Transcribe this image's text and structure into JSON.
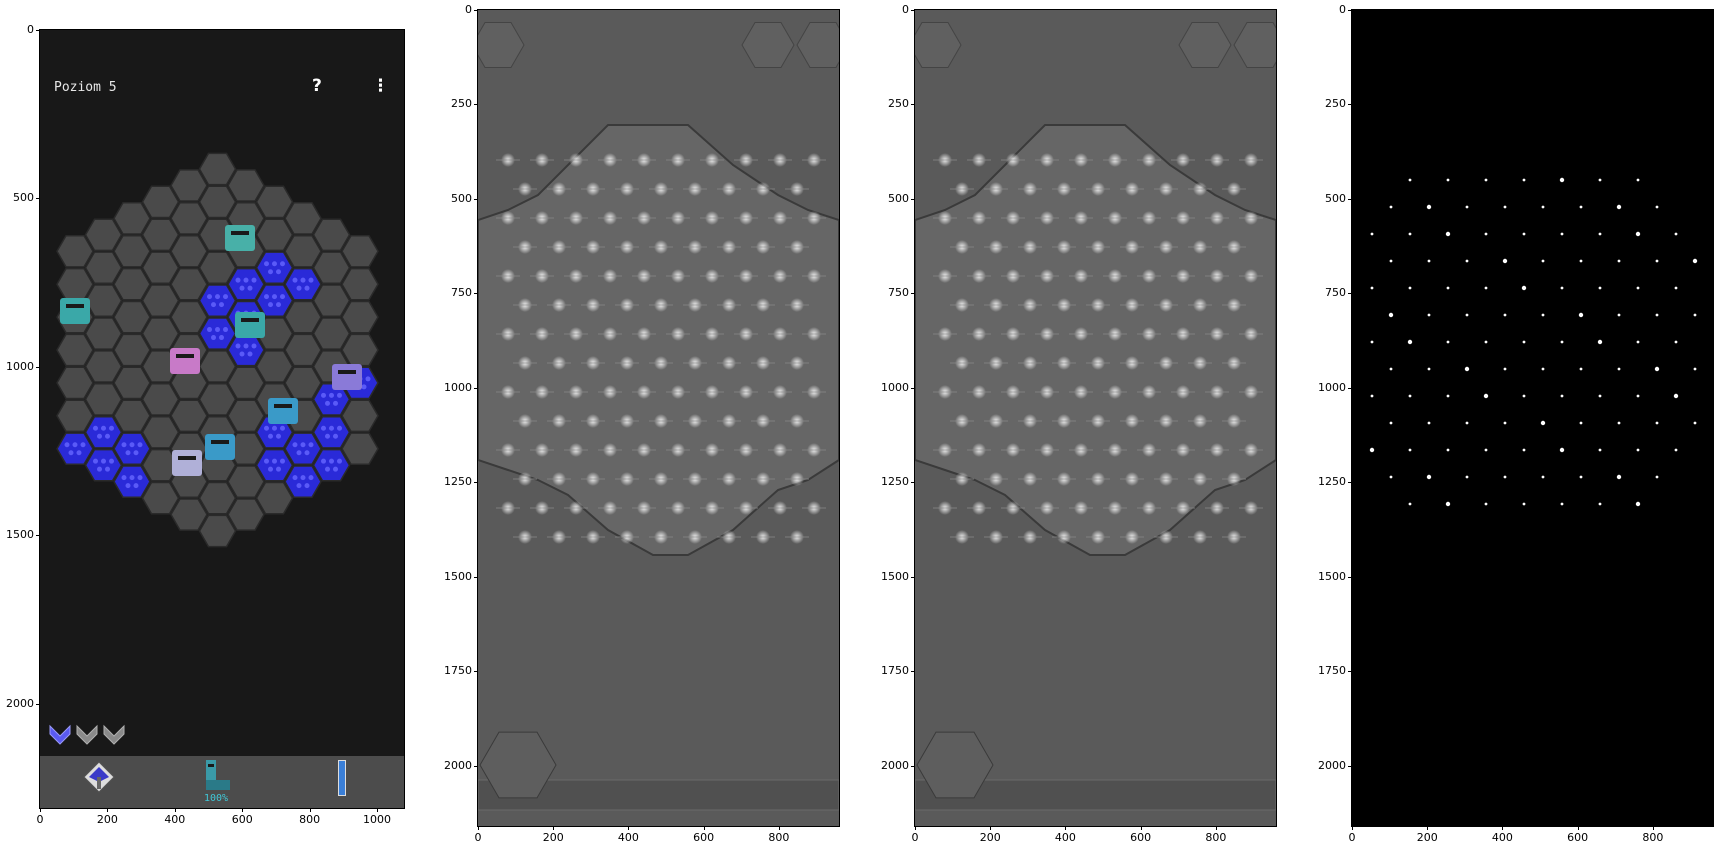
{
  "panels": [
    {
      "id": "game-screenshot",
      "x_ticks": [
        "0",
        "200",
        "400",
        "600",
        "800",
        "1000"
      ],
      "y_ticks": [
        "0",
        "500",
        "1000",
        "1500",
        "2000"
      ],
      "hud": {
        "title": "Poziom 5",
        "help_icon": "?",
        "menu_icon": "⋮",
        "boot_count": "100%"
      }
    },
    {
      "id": "filtered-map-1",
      "x_ticks": [
        "0",
        "200",
        "400",
        "600",
        "800"
      ],
      "y_ticks": [
        "0",
        "250",
        "500",
        "750",
        "1000",
        "1250",
        "1500",
        "1750",
        "2000"
      ]
    },
    {
      "id": "filtered-map-2",
      "x_ticks": [
        "0",
        "200",
        "400",
        "600",
        "800"
      ],
      "y_ticks": [
        "0",
        "250",
        "500",
        "750",
        "1000",
        "1250",
        "1500",
        "1750",
        "2000"
      ]
    },
    {
      "id": "peak-map",
      "x_ticks": [
        "0",
        "200",
        "400",
        "600",
        "800"
      ],
      "y_ticks": [
        "0",
        "250",
        "500",
        "750",
        "1000",
        "1250",
        "1500",
        "1750",
        "2000"
      ]
    }
  ],
  "colors": {
    "game_bg": "#181818",
    "hex_tile": "#4a4a4a",
    "water": "#2a2ad8",
    "filter_bg": "#5a5a5a",
    "peak_bg": "#000000",
    "heart_active": "#5a5af0",
    "heart_inactive": "#8a8a8a"
  }
}
